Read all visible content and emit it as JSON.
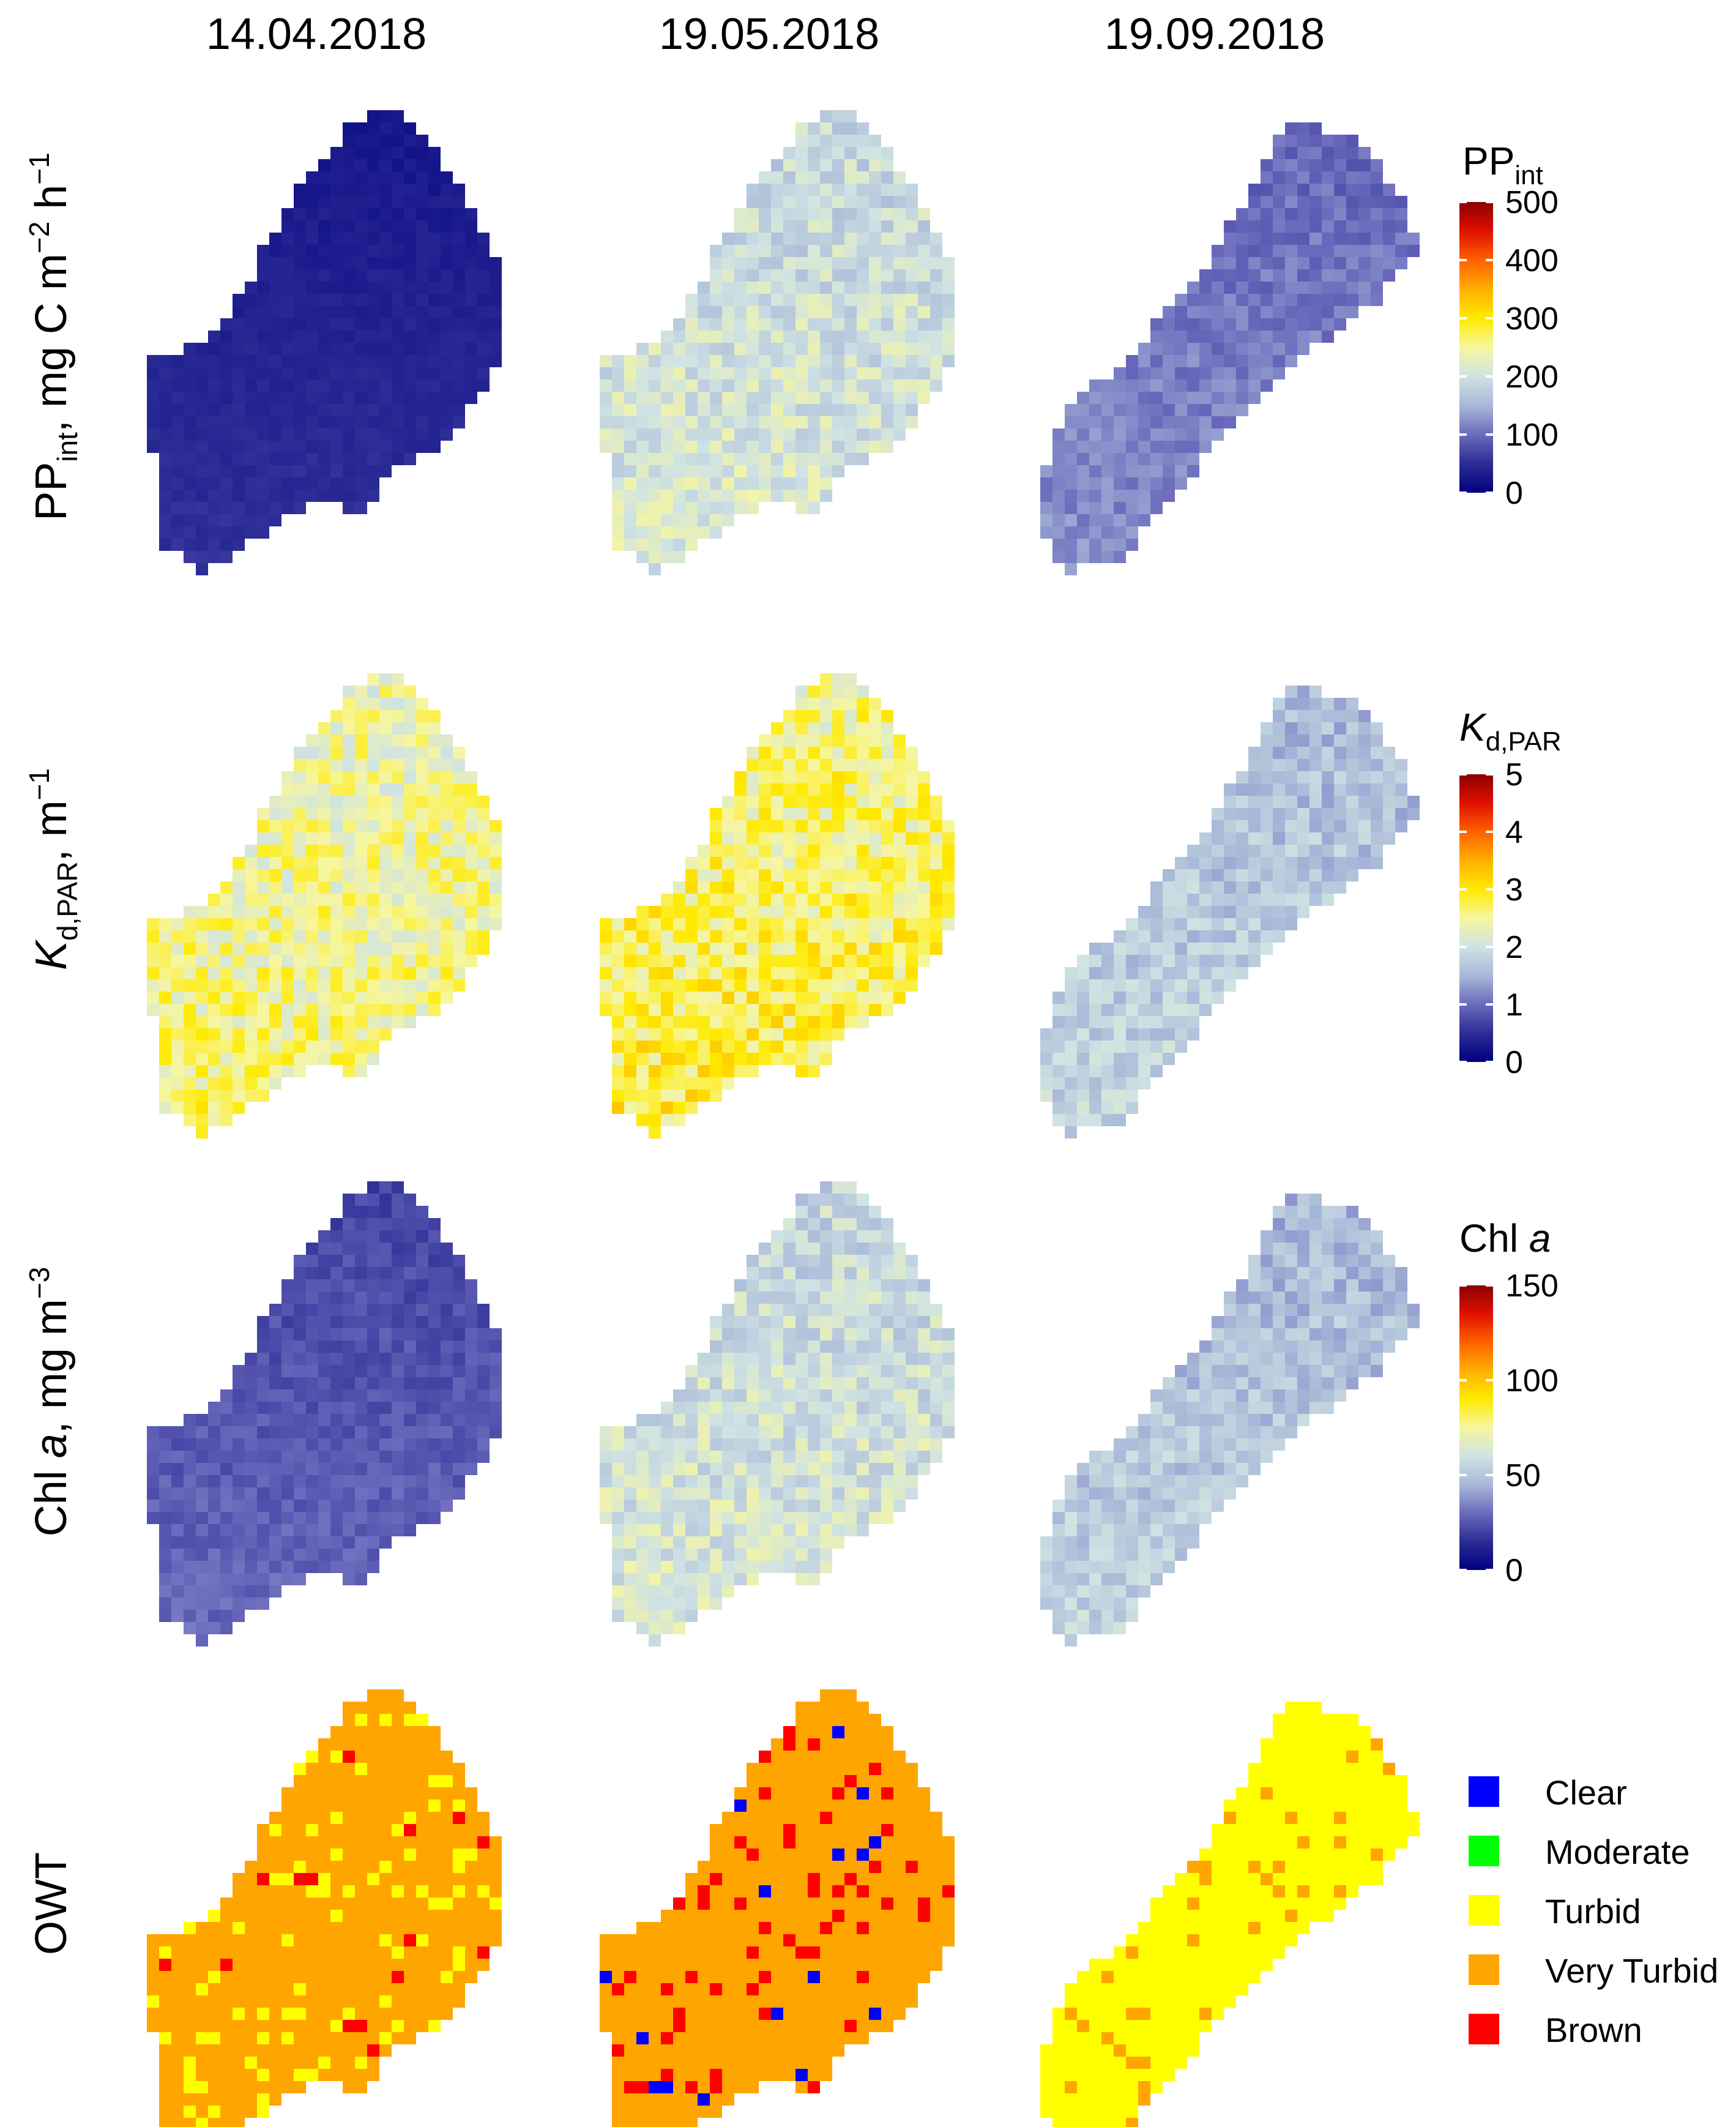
{
  "chart_data": {
    "type": "heatmap",
    "title": "",
    "columns": [
      "14.04.2018",
      "19.05.2018",
      "19.09.2018"
    ],
    "rows": [
      {
        "key": "pp",
        "ylabel": {
          "base": "PP",
          "sub": "int",
          "unit": ", mg C m",
          "sup1": "−2",
          "mid": " h",
          "sup2": "−1"
        },
        "colorbar": {
          "title": {
            "base": "PP",
            "sub": "int"
          },
          "range": [
            0,
            500
          ],
          "ticks": [
            "0",
            "100",
            "200",
            "300",
            "400",
            "500"
          ],
          "tick_values": [
            0,
            100,
            200,
            300,
            400,
            500
          ]
        },
        "maps": [
          {
            "date": "14.04.2018",
            "typical_value": 40
          },
          {
            "date": "19.05.2018",
            "typical_value": 200
          },
          {
            "date": "19.09.2018",
            "typical_value": 110
          }
        ]
      },
      {
        "key": "kd",
        "ylabel": {
          "base": "K",
          "sub": "d,PAR",
          "unit": ", m",
          "sup1": "−1"
        },
        "colorbar": {
          "title": {
            "base": "K",
            "sub": "d,PAR"
          },
          "range": [
            0,
            5
          ],
          "ticks": [
            "0",
            "1",
            "2",
            "3",
            "4",
            "5"
          ],
          "tick_values": [
            0,
            1,
            2,
            3,
            4,
            5
          ]
        },
        "maps": [
          {
            "date": "14.04.2018",
            "typical_value": 2.5
          },
          {
            "date": "19.05.2018",
            "typical_value": 2.7
          },
          {
            "date": "19.09.2018",
            "typical_value": 1.7
          }
        ]
      },
      {
        "key": "chl",
        "ylabel": {
          "base": "Chl ",
          "italic": "a",
          "unit": ", mg m",
          "sup1": "−3"
        },
        "colorbar": {
          "title": {
            "base": "Chl ",
            "italic": "a"
          },
          "range": [
            0,
            150
          ],
          "ticks": [
            "0",
            "50",
            "100",
            "150"
          ],
          "tick_values": [
            0,
            50,
            100,
            150
          ]
        },
        "maps": [
          {
            "date": "14.04.2018",
            "typical_value": 25
          },
          {
            "date": "19.05.2018",
            "typical_value": 60
          },
          {
            "date": "19.09.2018",
            "typical_value": 50
          }
        ]
      },
      {
        "key": "owt",
        "ylabel": {
          "base": "OWT"
        },
        "legend": [
          {
            "label": "Clear",
            "color": "#0000ff"
          },
          {
            "label": "Moderate",
            "color": "#00ff00"
          },
          {
            "label": "Turbid",
            "color": "#ffff00"
          },
          {
            "label": "Very Turbid",
            "color": "#ffa500"
          },
          {
            "label": "Brown",
            "color": "#ff0000"
          }
        ],
        "maps": [
          {
            "date": "14.04.2018",
            "dominant_class": "Very Turbid"
          },
          {
            "date": "19.05.2018",
            "dominant_class": "Very Turbid"
          },
          {
            "date": "19.09.2018",
            "dominant_class": "Turbid"
          }
        ]
      }
    ],
    "colormap": [
      "#000080",
      "#2c2c96",
      "#6b6bbd",
      "#a8b8d8",
      "#cfe3e3",
      "#f6f6a0",
      "#ffea00",
      "#ffb000",
      "#ff6000",
      "#e01000",
      "#8b0000"
    ]
  }
}
